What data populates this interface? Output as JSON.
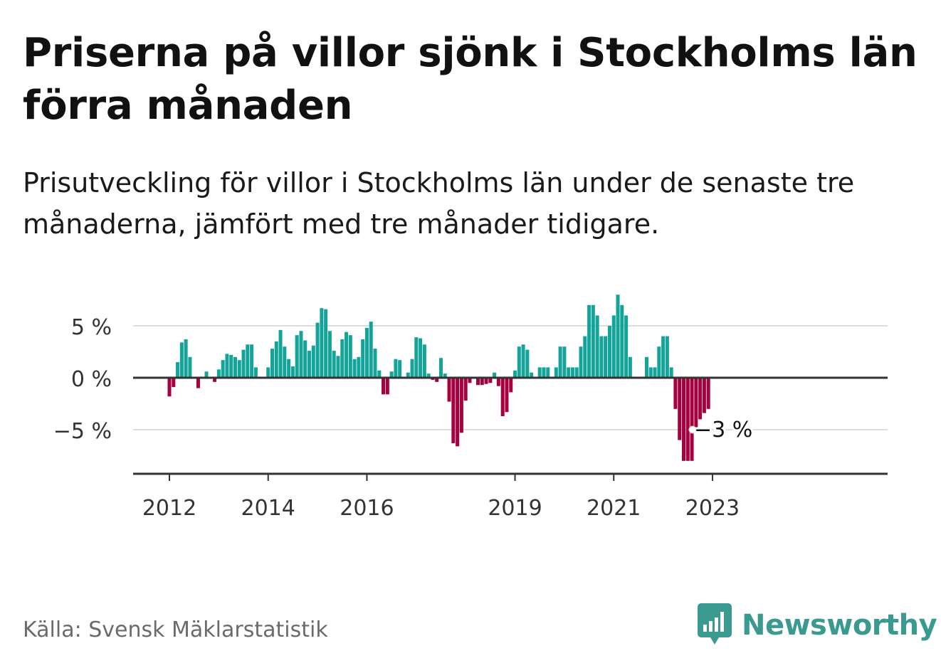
{
  "title": "Priserna på villor sjönk i Stockholms län förra månaden",
  "subtitle": "Prisutveckling för villor i Stockholms län under de senaste tre månaderna, jämfört med tre månader tidigare.",
  "source": "Källa: Svensk Mäklarstatistik",
  "brand": "Newsworthy",
  "colors": {
    "positive": "#13a398",
    "negative": "#a5003f",
    "grid": "#dddddd",
    "axis": "#333333",
    "brand": "#3a9a90"
  },
  "chart_data": {
    "type": "bar",
    "xlabel": "",
    "ylabel": "",
    "ylim": [
      -9.2,
      8.5
    ],
    "yticks": [
      {
        "value": 5,
        "label": "5 %"
      },
      {
        "value": 0,
        "label": "0 %"
      },
      {
        "value": -5,
        "label": "−5 %"
      }
    ],
    "xticks": [
      {
        "index": 0,
        "label": "2012"
      },
      {
        "index": 24,
        "label": "2014"
      },
      {
        "index": 48,
        "label": "2016"
      },
      {
        "index": 84,
        "label": "2019"
      },
      {
        "index": 108,
        "label": "2021"
      },
      {
        "index": 132,
        "label": "2023"
      }
    ],
    "values": [
      -1.8,
      -0.9,
      1.5,
      3.4,
      3.7,
      2.0,
      0,
      -1.0,
      0,
      0.6,
      0,
      -0.4,
      0.8,
      1.7,
      2.3,
      2.2,
      2.0,
      1.7,
      2.7,
      3.2,
      3.2,
      1.0,
      0,
      0,
      1.0,
      2.8,
      3.5,
      4.6,
      3.0,
      1.8,
      1.1,
      4.1,
      4.5,
      3.6,
      2.6,
      3.1,
      5.3,
      6.7,
      6.6,
      4.5,
      2.6,
      2.1,
      3.7,
      4.4,
      4.1,
      1.8,
      2.0,
      3.7,
      4.8,
      5.4,
      2.8,
      0.7,
      -1.6,
      -1.6,
      0.6,
      1.8,
      1.7,
      0,
      0.5,
      1.8,
      3.9,
      3.8,
      3.2,
      0.4,
      -0.2,
      -0.4,
      1.9,
      0.4,
      -2.3,
      -6.3,
      -6.6,
      -5.3,
      -2.2,
      -0.5,
      0,
      -0.7,
      -0.7,
      -0.6,
      -0.5,
      0.5,
      -0.8,
      -3.7,
      -3.3,
      -1.4,
      0.7,
      3.0,
      3.2,
      2.7,
      0.5,
      0,
      1.0,
      1.0,
      1.0,
      0,
      1.0,
      3.0,
      3.0,
      1.0,
      1.0,
      1.0,
      3.0,
      4.0,
      7.0,
      7.0,
      6.0,
      4.0,
      4.0,
      5.0,
      6.0,
      8.0,
      7.0,
      6.0,
      2.0,
      0,
      0,
      0,
      2.0,
      1.0,
      1.0,
      3.0,
      4.0,
      4.0,
      1.0,
      -3.0,
      -6.0,
      -8.0,
      -8.0,
      -8.0,
      -5.0,
      -4.0,
      -3.4,
      -3.0
    ],
    "start": "2012-01",
    "annotation": {
      "index": 132,
      "value": -5,
      "label": "−3 %"
    }
  }
}
